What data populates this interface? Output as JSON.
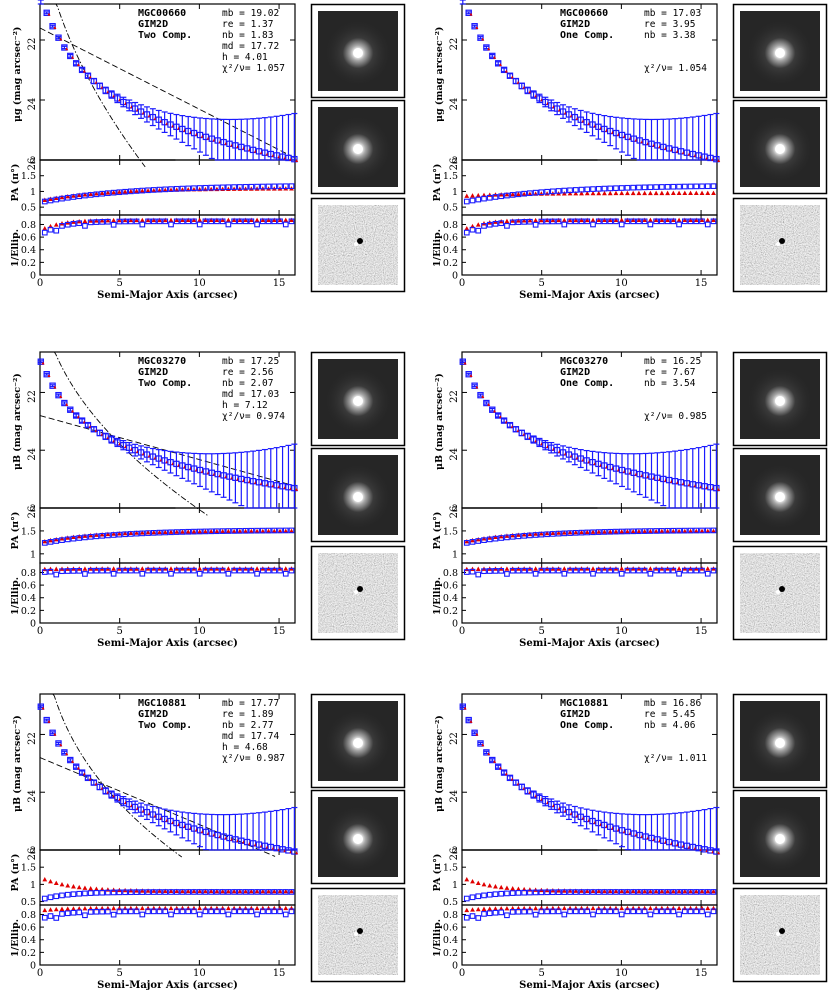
{
  "figure": {
    "x_axis_label": "Semi-Major Axis (arcsec)",
    "sb_axis_label_g": "μg (mag arcsec⁻²)",
    "sb_axis_label_B": "μB (mag arcsec⁻²)",
    "pa_axis_label": "PA (π°)",
    "ellip_axis_label": "1/Ellip.",
    "colors": {
      "data_blue": "#1a1aff",
      "model_red": "#e00000",
      "line": "#000000"
    }
  },
  "chart_data": [
    {
      "type": "scatter",
      "row": 0,
      "col": 0,
      "galaxy": "MGC00660",
      "method": "GIM2D",
      "fit": "Two Comp.",
      "sb_label_key": "g",
      "params": [
        "mb = 19.02",
        "re = 1.37",
        "nb = 1.83",
        "md = 17.72",
        "h = 4.01",
        "χ²/ν= 1.057"
      ],
      "xlim": [
        0,
        16
      ],
      "xticks": [
        0,
        5,
        10,
        15
      ],
      "sb_ylim": [
        26,
        20.8
      ],
      "sb_ticks": [
        22,
        24,
        26
      ],
      "sky_level": 26,
      "pa_ylim": [
        0.25,
        2
      ],
      "pa_ticks": [
        "0.5",
        "1",
        "1.5",
        "2"
      ],
      "el_ylim": [
        0,
        0.95
      ],
      "el_ticks": [
        "0",
        "0.2",
        "0.4",
        "0.6",
        "0.8"
      ],
      "disk": {
        "mu0": 21.6,
        "h": 4.01
      },
      "bulge": {
        "mue": 21.3,
        "re": 1.37,
        "n": 1.83
      },
      "sb_data": {
        "mu0": 20.6,
        "a": 1.1,
        "b": 0.72,
        "c": 3.2,
        "d": 0.8
      },
      "pa_blue": {
        "start": 0.65,
        "end": 1.2,
        "k": 0.18
      },
      "pa_red": {
        "start": 0.7,
        "end": 1.1,
        "k": 0.25
      },
      "el_blue": {
        "base": 0.85,
        "low": 0.62
      },
      "el_red": {
        "base": 0.87,
        "low": 0.7
      }
    },
    {
      "type": "scatter",
      "row": 0,
      "col": 1,
      "galaxy": "MGC00660",
      "method": "GIM2D",
      "fit": "One Comp.",
      "sb_label_key": "g",
      "params": [
        "mb = 17.03",
        "re = 3.95",
        "nb = 3.38",
        "",
        "",
        "χ²/ν= 1.054"
      ],
      "xlim": [
        0,
        16
      ],
      "xticks": [
        0,
        5,
        10,
        15
      ],
      "sb_ylim": [
        26,
        20.8
      ],
      "sb_ticks": [
        22,
        24,
        26
      ],
      "sky_level": 26,
      "pa_ylim": [
        0.25,
        2
      ],
      "pa_ticks": [
        "0.5",
        "1",
        "1.5",
        "2"
      ],
      "el_ylim": [
        0,
        0.95
      ],
      "el_ticks": [
        "0",
        "0.2",
        "0.4",
        "0.6",
        "0.8"
      ],
      "single": {
        "mu0": 20.7,
        "a": 1.05,
        "b": 0.72,
        "c": 3.2,
        "d": 0.8
      },
      "sb_data": {
        "mu0": 20.6,
        "a": 1.1,
        "b": 0.72,
        "c": 3.2,
        "d": 0.8
      },
      "pa_blue": {
        "start": 0.65,
        "end": 1.2,
        "k": 0.18
      },
      "pa_red": {
        "start": 0.85,
        "end": 0.95,
        "k": 0.3
      },
      "el_blue": {
        "base": 0.85,
        "low": 0.62
      },
      "el_red": {
        "base": 0.87,
        "low": 0.7
      }
    },
    {
      "type": "scatter",
      "row": 1,
      "col": 0,
      "galaxy": "MGC03270",
      "method": "GIM2D",
      "fit": "Two Comp.",
      "sb_label_key": "B",
      "params": [
        "mb = 17.25",
        "re = 2.56",
        "nb = 2.07",
        "md = 17.03",
        "h = 7.12",
        "χ²/ν= 0.974"
      ],
      "xlim": [
        0,
        16
      ],
      "xticks": [
        0,
        5,
        10,
        15
      ],
      "sb_ylim": [
        26,
        20.6
      ],
      "sb_ticks": [
        22,
        24,
        26
      ],
      "sky_level": 26,
      "pa_ylim": [
        0.8,
        2
      ],
      "pa_ticks": [
        "1",
        "1.5",
        "2"
      ],
      "el_ylim": [
        0,
        0.95
      ],
      "el_ticks": [
        "0",
        "0.2",
        "0.4",
        "0.6",
        "0.8"
      ],
      "disk": {
        "mu0": 22.8,
        "h": 7.12
      },
      "bulge": {
        "mue": 22.2,
        "re": 2.56,
        "n": 2.07
      },
      "sb_data": {
        "mu0": 20.9,
        "a": 0.85,
        "b": 0.72,
        "c": 2.8,
        "d": 0.66
      },
      "pa_blue": {
        "start": 1.22,
        "end": 1.52,
        "k": 0.22
      },
      "pa_red": {
        "start": 1.25,
        "end": 1.5,
        "k": 0.3
      },
      "el_blue": {
        "base": 0.83,
        "low": 0.8
      },
      "el_red": {
        "base": 0.86,
        "low": 0.85
      }
    },
    {
      "type": "scatter",
      "row": 1,
      "col": 1,
      "galaxy": "MGC03270",
      "method": "GIM2D",
      "fit": "One Comp.",
      "sb_label_key": "B",
      "params": [
        "mb = 16.25",
        "re = 7.67",
        "nb = 3.54",
        "",
        "",
        "χ²/ν= 0.985"
      ],
      "xlim": [
        0,
        16
      ],
      "xticks": [
        0,
        5,
        10,
        15
      ],
      "sb_ylim": [
        26,
        20.6
      ],
      "sb_ticks": [
        22,
        24,
        26
      ],
      "sky_level": 26,
      "pa_ylim": [
        0.8,
        2
      ],
      "pa_ticks": [
        "1",
        "1.5",
        "2"
      ],
      "el_ylim": [
        0,
        0.95
      ],
      "el_ticks": [
        "0",
        "0.2",
        "0.4",
        "0.6",
        "0.8"
      ],
      "single": {
        "mu0": 20.9,
        "a": 0.88,
        "b": 0.72,
        "c": 2.7,
        "d": 0.66
      },
      "sb_data": {
        "mu0": 20.9,
        "a": 0.85,
        "b": 0.72,
        "c": 2.8,
        "d": 0.66
      },
      "pa_blue": {
        "start": 1.22,
        "end": 1.52,
        "k": 0.22
      },
      "pa_red": {
        "start": 1.25,
        "end": 1.5,
        "k": 0.3
      },
      "el_blue": {
        "base": 0.83,
        "low": 0.8
      },
      "el_red": {
        "base": 0.86,
        "low": 0.85
      }
    },
    {
      "type": "scatter",
      "row": 2,
      "col": 0,
      "galaxy": "MGC10881",
      "method": "GIM2D",
      "fit": "Two Comp.",
      "sb_label_key": "B",
      "params": [
        "mb = 17.77",
        "re = 1.89",
        "nb = 2.77",
        "md = 17.74",
        "h = 4.68",
        "χ²/ν= 0.987"
      ],
      "xlim": [
        0,
        16
      ],
      "xticks": [
        0,
        5,
        10,
        15
      ],
      "sb_ylim": [
        26,
        20.6
      ],
      "sb_ticks": [
        22,
        24,
        26
      ],
      "sky_level": 26,
      "pa_ylim": [
        0.4,
        2
      ],
      "pa_ticks": [
        "0.5",
        "1",
        "1.5",
        "2"
      ],
      "el_ylim": [
        0,
        0.95
      ],
      "el_ticks": [
        "0",
        "0.2",
        "0.4",
        "0.6",
        "0.8"
      ],
      "disk": {
        "mu0": 22.8,
        "h": 4.68
      },
      "bulge": {
        "mue": 22.0,
        "re": 1.89,
        "n": 2.77
      },
      "sb_data": {
        "mu0": 21.0,
        "a": 1.0,
        "b": 0.72,
        "c": 3.0,
        "d": 0.72
      },
      "pa_blue": {
        "start": 0.55,
        "end": 0.78,
        "k": 0.6
      },
      "pa_red": {
        "start": 1.2,
        "end": 0.8,
        "k": 0.5
      },
      "el_blue": {
        "base": 0.85,
        "low": 0.72
      },
      "el_red": {
        "base": 0.9,
        "low": 0.86
      }
    },
    {
      "type": "scatter",
      "row": 2,
      "col": 1,
      "galaxy": "MGC10881",
      "method": "GIM2D",
      "fit": "One Comp.",
      "sb_label_key": "B",
      "params": [
        "mb = 16.86",
        "re = 5.45",
        "nb = 4.06",
        "",
        "",
        "χ²/ν= 1.011"
      ],
      "xlim": [
        0,
        16
      ],
      "xticks": [
        0,
        5,
        10,
        15
      ],
      "sb_ylim": [
        26,
        20.6
      ],
      "sb_ticks": [
        22,
        24,
        26
      ],
      "sky_level": 26,
      "pa_ylim": [
        0.4,
        2
      ],
      "pa_ticks": [
        "0.5",
        "1",
        "1.5",
        "2"
      ],
      "el_ylim": [
        0,
        0.95
      ],
      "el_ticks": [
        "0",
        "0.2",
        "0.4",
        "0.6",
        "0.8"
      ],
      "single": {
        "mu0": 21.0,
        "a": 1.0,
        "b": 0.72,
        "c": 3.0,
        "d": 0.75
      },
      "sb_data": {
        "mu0": 21.0,
        "a": 1.0,
        "b": 0.72,
        "c": 3.0,
        "d": 0.72
      },
      "pa_blue": {
        "start": 0.55,
        "end": 0.78,
        "k": 0.6
      },
      "pa_red": {
        "start": 1.2,
        "end": 0.8,
        "k": 0.5
      },
      "el_blue": {
        "base": 0.85,
        "low": 0.72
      },
      "el_red": {
        "base": 0.9,
        "low": 0.86
      }
    }
  ]
}
